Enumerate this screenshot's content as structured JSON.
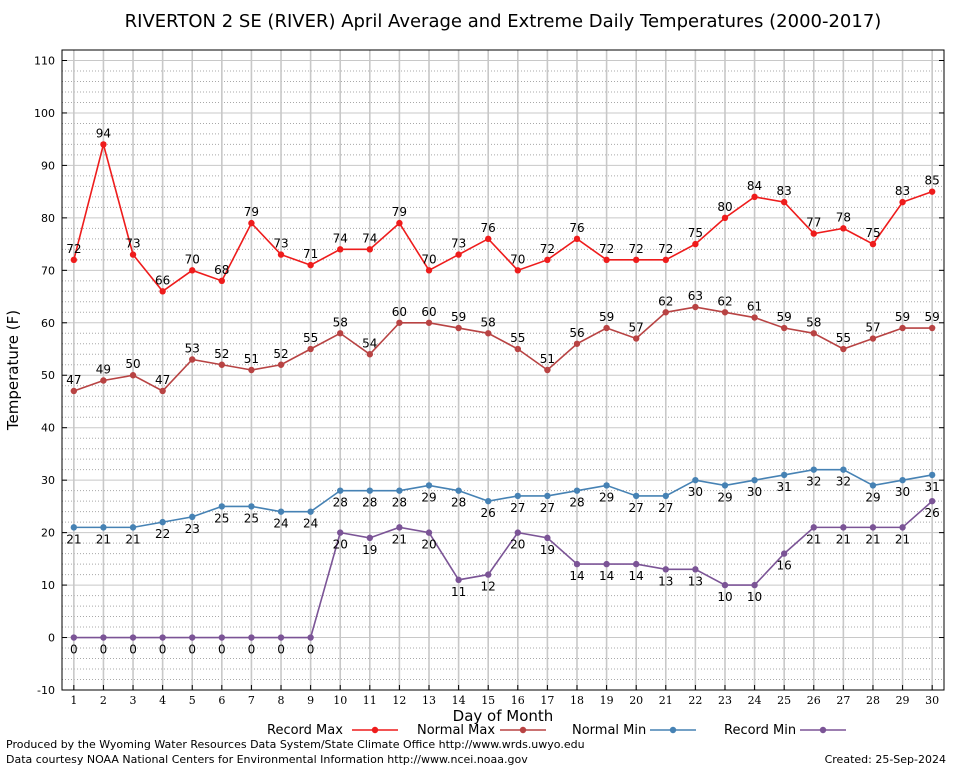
{
  "chart_data": {
    "type": "line",
    "title": "RIVERTON 2 SE (RIVER) April Average and Extreme Daily Temperatures (2000-2017)",
    "xlabel": "Day of Month",
    "ylabel": "Temperature (F)",
    "ylim": [
      -10,
      112
    ],
    "xlim": [
      0.6,
      30.4
    ],
    "yticks": [
      -10,
      0,
      10,
      20,
      30,
      40,
      50,
      60,
      70,
      80,
      90,
      100,
      110
    ],
    "x": [
      1,
      2,
      3,
      4,
      5,
      6,
      7,
      8,
      9,
      10,
      11,
      12,
      13,
      14,
      15,
      16,
      17,
      18,
      19,
      20,
      21,
      22,
      23,
      24,
      25,
      26,
      27,
      28,
      29,
      30
    ],
    "grid": true,
    "legend_position": "bottom",
    "series": [
      {
        "name": "Record Max",
        "color": "#ee1c1c",
        "label_pos": "above",
        "values": [
          72,
          94,
          73,
          66,
          70,
          68,
          79,
          73,
          71,
          74,
          74,
          79,
          70,
          73,
          76,
          70,
          72,
          76,
          72,
          72,
          72,
          75,
          80,
          84,
          83,
          77,
          78,
          75,
          83,
          85
        ]
      },
      {
        "name": "Normal Max",
        "color": "#b84343",
        "label_pos": "above",
        "values": [
          47,
          49,
          50,
          47,
          53,
          52,
          51,
          52,
          55,
          58,
          54,
          60,
          60,
          59,
          58,
          55,
          51,
          56,
          59,
          57,
          62,
          63,
          62,
          61,
          59,
          58,
          55,
          57,
          59,
          59
        ]
      },
      {
        "name": "Normal Min",
        "color": "#4682b4",
        "label_pos": "below",
        "values": [
          21,
          21,
          21,
          22,
          23,
          25,
          25,
          24,
          24,
          28,
          28,
          28,
          29,
          28,
          26,
          27,
          27,
          28,
          29,
          27,
          27,
          30,
          29,
          30,
          31,
          32,
          32,
          29,
          30,
          31
        ]
      },
      {
        "name": "Record Min",
        "color": "#7b5496",
        "label_pos": "below",
        "values": [
          0,
          0,
          0,
          0,
          0,
          0,
          0,
          0,
          0,
          20,
          19,
          21,
          20,
          11,
          12,
          20,
          19,
          14,
          14,
          14,
          13,
          13,
          10,
          10,
          16,
          21,
          21,
          21,
          21,
          26
        ]
      }
    ]
  },
  "footer": {
    "line1": "Produced by the Wyoming Water Resources Data System/State Climate Office http://www.wrds.uwyo.edu",
    "line2": "Data courtesy NOAA National Centers for Environmental Information http://www.ncei.noaa.gov",
    "created": "Created: 25-Sep-2024"
  }
}
